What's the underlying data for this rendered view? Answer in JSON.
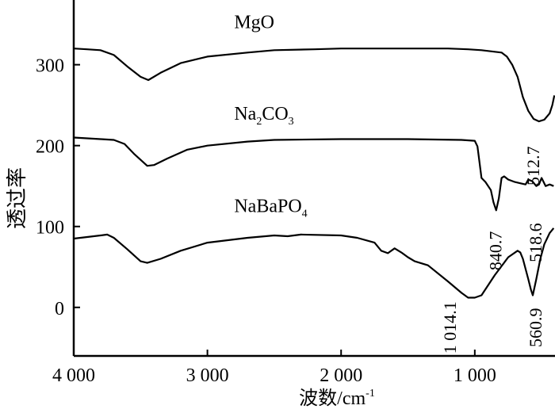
{
  "chart_data": {
    "type": "line",
    "title": "",
    "xlabel": "波数/cm",
    "xlabel_sup": "-1",
    "ylabel": "透过率",
    "xlim": [
      4000,
      400
    ],
    "ylim": [
      -60,
      380
    ],
    "grid": false,
    "x_ticks": [
      4000,
      3000,
      2000,
      1000
    ],
    "x_tick_labels": [
      "4 000",
      "3 000",
      "2 000",
      "1 000"
    ],
    "y_ticks": [
      0,
      100,
      200,
      300
    ],
    "y_tick_labels": [
      "0",
      "100",
      "200",
      "300"
    ],
    "series": [
      {
        "name": "MgO",
        "label_main": "MgO",
        "label_sub": "",
        "label_tail": "",
        "label_at": [
          2800,
          345
        ],
        "x": [
          4000,
          3900,
          3800,
          3700,
          3600,
          3500,
          3442,
          3350,
          3200,
          3000,
          2700,
          2500,
          2200,
          2000,
          1600,
          1200,
          1050,
          950,
          850,
          800,
          760,
          720,
          680,
          640,
          600,
          560,
          520,
          480,
          440,
          420,
          405
        ],
        "y": [
          320,
          319,
          318,
          312,
          298,
          285,
          281,
          290,
          302,
          310,
          315,
          318,
          319,
          320,
          320,
          320,
          319,
          318,
          316,
          315,
          310,
          300,
          285,
          260,
          243,
          233,
          230,
          232,
          240,
          250,
          262
        ]
      },
      {
        "name": "Na2CO3",
        "label_main": "Na",
        "label_sub": "2",
        "label_tail": "CO",
        "label_sub2": "3",
        "label_at": [
          2800,
          232
        ],
        "x": [
          4000,
          3900,
          3800,
          3700,
          3620,
          3550,
          3450,
          3400,
          3300,
          3150,
          3000,
          2700,
          2500,
          2000,
          1500,
          1100,
          1000,
          980,
          965,
          950,
          920,
          880,
          860,
          840,
          820,
          800,
          780,
          750,
          700,
          650,
          620,
          600,
          570,
          540,
          520,
          500,
          470,
          440,
          410
        ],
        "y": [
          210,
          209,
          208,
          207,
          202,
          190,
          175,
          176,
          184,
          195,
          200,
          205,
          207,
          208,
          208,
          207,
          206,
          199,
          180,
          160,
          155,
          145,
          130,
          120,
          135,
          160,
          162,
          158,
          155,
          153,
          152,
          158,
          156,
          150,
          152,
          160,
          150,
          152,
          150
        ]
      },
      {
        "name": "NaBaPO4",
        "label_main": "NaBaPO",
        "label_sub": "4",
        "label_tail": "",
        "label_at": [
          2800,
          118
        ],
        "x": [
          4000,
          3900,
          3800,
          3750,
          3700,
          3600,
          3500,
          3450,
          3350,
          3200,
          3000,
          2700,
          2500,
          2400,
          2300,
          2000,
          1880,
          1750,
          1700,
          1650,
          1600,
          1550,
          1500,
          1450,
          1350,
          1200,
          1100,
          1050,
          1000,
          950,
          850,
          750,
          680,
          660,
          640,
          600,
          580,
          566,
          540,
          510,
          480,
          440,
          410
        ],
        "y": [
          85,
          87,
          89,
          90,
          86,
          72,
          57,
          55,
          60,
          70,
          80,
          86,
          89,
          88,
          90,
          89,
          86,
          80,
          70,
          67,
          73,
          68,
          62,
          57,
          52,
          32,
          18,
          12,
          12,
          15,
          40,
          62,
          70,
          68,
          60,
          35,
          22,
          15,
          35,
          60,
          78,
          92,
          98
        ]
      }
    ],
    "annotations": [
      {
        "text": "512.7",
        "at": [
          520,
          175
        ]
      },
      {
        "text": "840.7",
        "at": [
          800,
          70
        ]
      },
      {
        "text": "518.6",
        "at": [
          500,
          80
        ]
      },
      {
        "text": "1 014.1",
        "at": [
          1140,
          -25
        ]
      },
      {
        "text": "560.9",
        "at": [
          500,
          -25
        ]
      }
    ]
  }
}
